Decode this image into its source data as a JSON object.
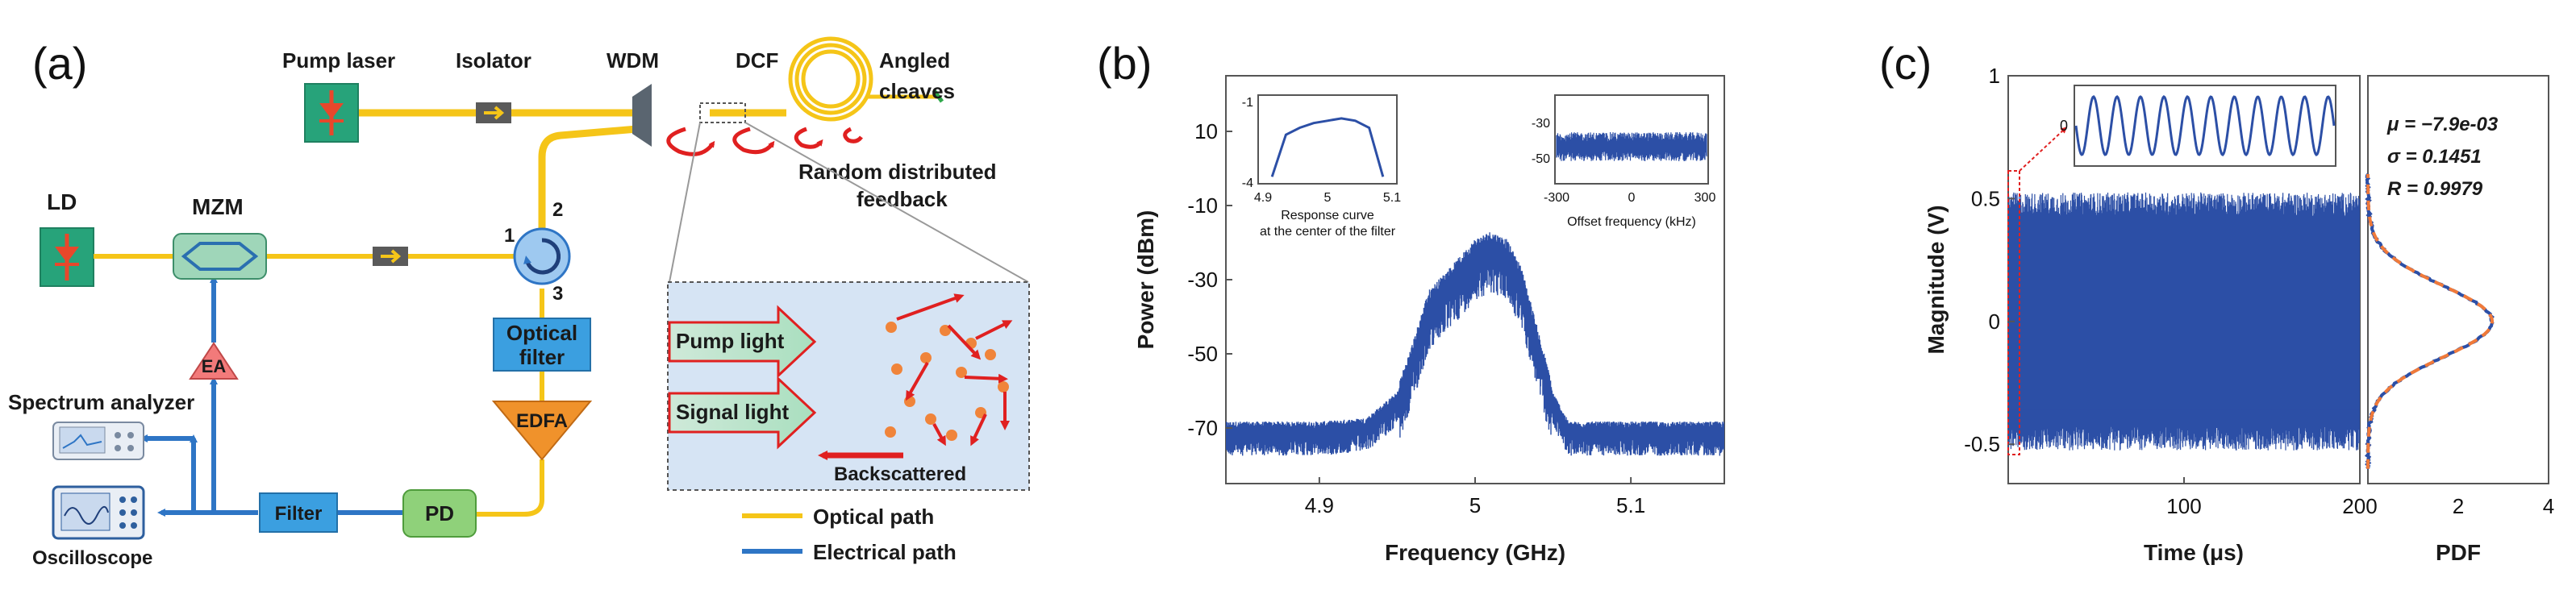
{
  "panel_a": {
    "tag": "(a)",
    "labels": {
      "pump_laser": "Pump laser",
      "isolator": "Isolator",
      "wdm": "WDM",
      "dcf": "DCF",
      "angled_cleaves_1": "Angled",
      "angled_cleaves_2": "cleaves",
      "random_feedback_1": "Random distributed",
      "random_feedback_2": "feedback",
      "ld": "LD",
      "mzm": "MZM",
      "port1": "1",
      "port2": "2",
      "port3": "3",
      "optical_filter_1": "Optical",
      "optical_filter_2": "filter",
      "ea": "EA",
      "edfa": "EDFA",
      "spectrum_analyzer": "Spectrum analyzer",
      "oscilloscope": "Oscilloscope",
      "filter": "Filter",
      "pd": "PD",
      "pump_light": "Pump light",
      "signal_light": "Signal light",
      "backscattered": "Backscattered",
      "legend_optical": "Optical path",
      "legend_electrical": "Electrical path"
    },
    "colors": {
      "optical": "#f5c518",
      "electrical": "#2e75c5",
      "laser_box": "#27a37a",
      "laser_symbol": "#e8472b",
      "mzm_box": "#9fd6b9",
      "optical_filter": "#3b9fe0",
      "edfa": "#f0922b",
      "ea": "#f27a7a",
      "pd": "#8fd17a",
      "filter_box": "#3b9fe0",
      "inset_bg": "#d6e4f4"
    }
  },
  "panel_b": {
    "tag": "(b)",
    "chart_data": {
      "type": "line",
      "title": "",
      "xlabel": "Frequency (GHz)",
      "ylabel": "Power (dBm)",
      "xlim": [
        4.84,
        5.16
      ],
      "ylim": [
        -85,
        25
      ],
      "xticks": [
        "4.9",
        "5",
        "5.1"
      ],
      "yticks": [
        "10",
        "-10",
        "-30",
        "-50",
        "-70"
      ],
      "series": [
        {
          "name": "spectrum",
          "x": [
            4.84,
            4.9,
            4.93,
            4.95,
            4.96,
            4.97,
            4.99,
            5.0,
            5.01,
            5.02,
            5.03,
            5.04,
            5.05,
            5.06,
            5.1,
            5.16
          ],
          "values": [
            -70,
            -70,
            -69,
            -62,
            -50,
            -36,
            -27,
            -22,
            -20,
            -22,
            -30,
            -46,
            -62,
            -70,
            -70,
            -70
          ]
        }
      ],
      "color": "#2c4fa6",
      "inset_left": {
        "xlabel": "Response curve",
        "xlabel2": "at the center of the filter",
        "xticks": [
          "4.9",
          "5",
          "5.1"
        ],
        "yticks": [
          "-1",
          "-4"
        ],
        "x": [
          4.92,
          4.94,
          4.96,
          4.98,
          5.0,
          5.02,
          5.04,
          5.06,
          5.08
        ],
        "values": [
          -4,
          -2.2,
          -1.9,
          -1.7,
          -1.6,
          -1.5,
          -1.6,
          -1.9,
          -4
        ]
      },
      "inset_right": {
        "xlabel": "Offset frequency (kHz)",
        "xticks": [
          "-300",
          "0",
          "300"
        ],
        "yticks": [
          "-30",
          "-50"
        ],
        "mean": -41
      }
    }
  },
  "panel_c": {
    "tag": "(c)",
    "chart_data": {
      "type": "line",
      "xlabel": "Time (μs)",
      "ylabel": "Magnitude (V)",
      "xlim": [
        0,
        200
      ],
      "ylim": [
        -0.66,
        1.0
      ],
      "xticks": [
        "100",
        "200"
      ],
      "yticks": [
        "1",
        "0.5",
        "0",
        "-0.5"
      ],
      "envelope": 0.5,
      "color": "#2c4fa6",
      "inset": {
        "ytick": "0"
      },
      "pdf": {
        "xlabel": "PDF",
        "xticks": [
          "2",
          "4"
        ],
        "xtick0": "2",
        "mu": "μ = −7.9e-03",
        "sigma": "σ = 0.1451",
        "r": "R = 0.9979",
        "peak": 2.75,
        "fit_color": "#f07a3a"
      }
    }
  }
}
